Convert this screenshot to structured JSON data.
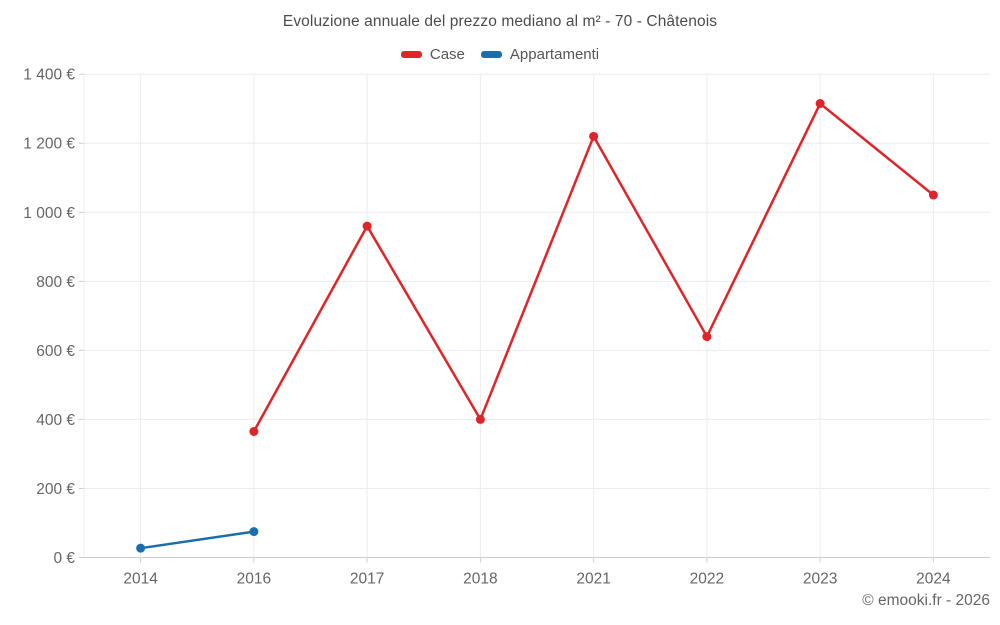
{
  "chart": {
    "title": "Evoluzione annuale del prezzo mediano al m² - 70 - Châtenois"
  },
  "footer": {
    "copyright": "© emooki.fr - 2026"
  },
  "chart_data": {
    "type": "line",
    "title": "Evoluzione annuale del prezzo mediano al m² - 70 - Châtenois",
    "categories": [
      "2014",
      "2016",
      "2017",
      "2018",
      "2021",
      "2022",
      "2023",
      "2024"
    ],
    "series": [
      {
        "name": "Case",
        "color": "#e02429",
        "marker": "circle",
        "values": [
          null,
          365,
          960,
          400,
          1220,
          640,
          1315,
          1050
        ]
      },
      {
        "name": "Appartamenti",
        "color": "#1b6eab",
        "marker": "circle",
        "values": [
          27,
          75,
          null,
          null,
          null,
          null,
          null,
          null
        ]
      }
    ],
    "xlabel": "",
    "ylabel": "",
    "ylim": [
      0,
      1400
    ],
    "yticks": [
      0,
      200,
      400,
      600,
      800,
      1000,
      1200,
      1400
    ],
    "ytick_labels": [
      "0 €",
      "200 €",
      "400 €",
      "600 €",
      "800 €",
      "1 000 €",
      "1 200 €",
      "1 400 €"
    ],
    "grid": true,
    "legend_position": "top",
    "axis_color": "#cccccc",
    "grid_color": "#ececec"
  }
}
